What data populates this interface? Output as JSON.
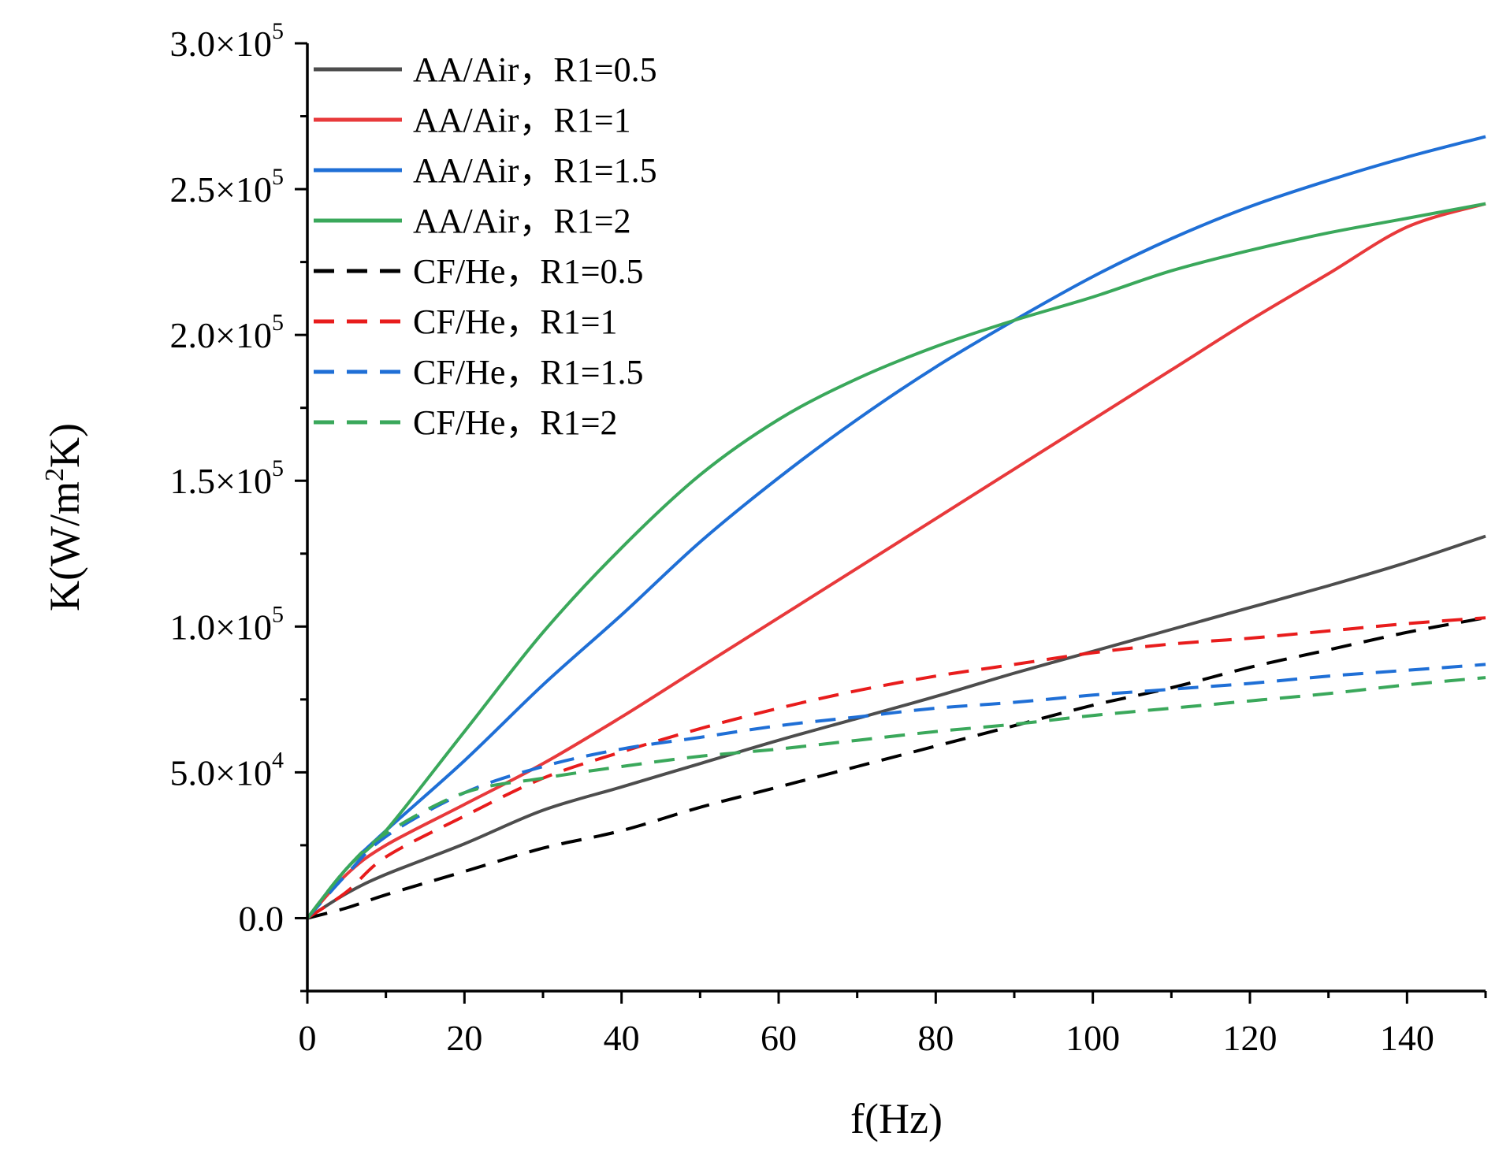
{
  "chart_data": {
    "type": "line",
    "title": "",
    "xlabel": "f(Hz)",
    "ylabel": "K(W/m²K)",
    "ylabel_parts": {
      "pre": "K(W/m",
      "sup": "2",
      "post": "K)"
    },
    "xlim": [
      0,
      150
    ],
    "ylim": [
      -25000,
      300000
    ],
    "xticks": [
      0,
      20,
      40,
      60,
      80,
      100,
      120,
      140
    ],
    "xtick_labels": [
      "0",
      "20",
      "40",
      "60",
      "80",
      "100",
      "120",
      "140"
    ],
    "yticks": [
      0,
      50000,
      100000,
      150000,
      200000,
      250000,
      300000
    ],
    "ytick_labels": [
      {
        "mantissa": "0.0",
        "exp": ""
      },
      {
        "mantissa": "5.0×10",
        "exp": "4"
      },
      {
        "mantissa": "1.0×10",
        "exp": "5"
      },
      {
        "mantissa": "1.5×10",
        "exp": "5"
      },
      {
        "mantissa": "2.0×10",
        "exp": "5"
      },
      {
        "mantissa": "2.5×10",
        "exp": "5"
      },
      {
        "mantissa": "3.0×10",
        "exp": "5"
      }
    ],
    "grid": false,
    "legend_position": "top-left",
    "x": [
      0,
      5,
      10,
      20,
      30,
      40,
      50,
      60,
      70,
      80,
      90,
      100,
      110,
      120,
      130,
      140,
      150
    ],
    "series": [
      {
        "name": "AA/Air，R1=0.5",
        "color": "#4d4d4d",
        "dash": "solid",
        "values": [
          0,
          8500,
          15000,
          25500,
          37000,
          45000,
          53000,
          61000,
          68500,
          76000,
          84000,
          91500,
          99000,
          106500,
          114000,
          122000,
          131000
        ]
      },
      {
        "name": "AA/Air，R1=1",
        "color": "#e8393b",
        "dash": "solid",
        "values": [
          0,
          15000,
          25000,
          39000,
          53000,
          69000,
          86000,
          103000,
          120000,
          137000,
          154000,
          171000,
          188000,
          205000,
          221000,
          237000,
          245000
        ]
      },
      {
        "name": "AA/Air，R1=1.5",
        "color": "#1f6fd6",
        "dash": "solid",
        "values": [
          0,
          17000,
          30000,
          54000,
          80000,
          104000,
          129000,
          151000,
          171000,
          189000,
          205000,
          220000,
          233000,
          244000,
          253000,
          261000,
          268000
        ]
      },
      {
        "name": "AA/Air，R1=2",
        "color": "#3aa85b",
        "dash": "solid",
        "values": [
          0,
          17000,
          30000,
          64000,
          98000,
          127000,
          152000,
          171000,
          185000,
          196000,
          205000,
          213000,
          222000,
          229000,
          235000,
          240000,
          245000
        ]
      },
      {
        "name": "CF/He，R1=0.5",
        "color": "#000000",
        "dash": "dashed",
        "values": [
          0,
          3500,
          8000,
          16000,
          24000,
          30000,
          38000,
          45000,
          52000,
          59000,
          66000,
          73000,
          79000,
          86000,
          92000,
          98000,
          103000
        ]
      },
      {
        "name": "CF/He，R1=1",
        "color": "#e81c1c",
        "dash": "dashed",
        "values": [
          0,
          9000,
          21000,
          35000,
          48000,
          57000,
          65000,
          72000,
          78000,
          83000,
          87000,
          91000,
          94000,
          96000,
          98500,
          101000,
          103000
        ]
      },
      {
        "name": "CF/He，R1=1.5",
        "color": "#1f6fd6",
        "dash": "dashed",
        "values": [
          0,
          15000,
          28000,
          43000,
          52000,
          58000,
          62000,
          66000,
          69000,
          72000,
          74000,
          76500,
          78500,
          80500,
          83000,
          85000,
          87000
        ]
      },
      {
        "name": "CF/He，R1=2",
        "color": "#3aa85b",
        "dash": "dashed",
        "values": [
          0,
          17000,
          29000,
          43000,
          48000,
          52000,
          55500,
          58000,
          61000,
          64000,
          66500,
          69500,
          72000,
          74500,
          77000,
          80000,
          82500
        ]
      }
    ]
  }
}
